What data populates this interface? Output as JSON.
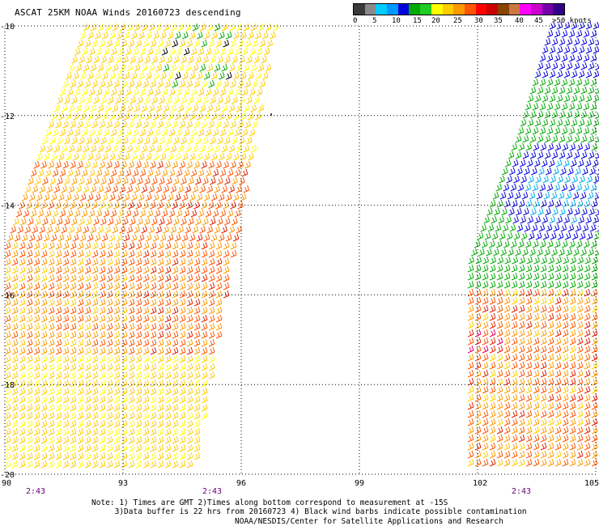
{
  "title": "ASCAT 25KM NOAA Winds 20160723 descending",
  "legend": {
    "labels": [
      "0",
      "5",
      "10",
      "15",
      "20",
      "25",
      "30",
      "35",
      "40",
      "45",
      ">50 knots"
    ],
    "colors": [
      "#3a3a3a",
      "#8a8a8a",
      "#00ccff",
      "#0099ff",
      "#0000dd",
      "#00aa00",
      "#22cc22",
      "#ffff00",
      "#ffcc00",
      "#ff9900",
      "#ff5500",
      "#ff0000",
      "#cc0000",
      "#884400",
      "#cc7744",
      "#ff00ff",
      "#cc00cc",
      "#7700aa",
      "#330088"
    ]
  },
  "map": {
    "lon_range": [
      90,
      105
    ],
    "lat_range": [
      -20,
      -10
    ],
    "lon_labels": [
      "90",
      "93",
      "96",
      "99",
      "102",
      "105"
    ],
    "lat_labels": [
      "-10",
      "-12",
      "-14",
      "-16",
      "-18",
      "-20"
    ],
    "time_labels": [
      "2:43",
      "2:43",
      "2:43"
    ],
    "time_color": "#660077"
  },
  "note_line1": "Note: 1) Times are GMT 2)Times along bottom correspond to measurement at -15S",
  "note_line2": "     3)Data buffer is 22 hrs from 20160723 4) Black wind barbs indicate possible contamination",
  "credit": "NOAA/NESDIS/Center for Satellite Applications and Research"
}
